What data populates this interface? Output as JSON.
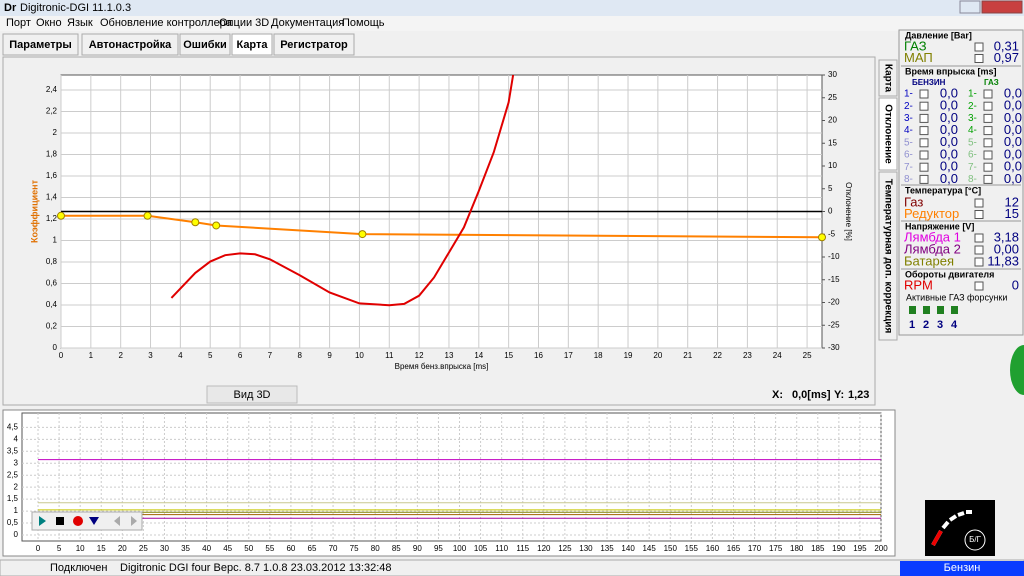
{
  "window": {
    "title": "Digitronic-DGI  11.1.0.3"
  },
  "menu": [
    "Порт",
    "Окно",
    "Язык",
    "Обновление контроллера",
    "Опции 3D",
    "Документация",
    "Помощь"
  ],
  "tabs": [
    "Параметры",
    "Автонастройка",
    "Ошибки",
    "Карта",
    "Регистратор"
  ],
  "side_tabs": [
    "Карта",
    "Отклонение",
    "Температурная доп. коррекция"
  ],
  "chart_data": [
    {
      "type": "line",
      "x_label": "Время бенз.впрыска [ms]",
      "y_label": "Коэффициент",
      "y2_label": "Отклонение [%]",
      "xlim": [
        0,
        25.5
      ],
      "xticks": [
        0,
        1,
        2,
        3,
        4,
        5,
        6,
        7,
        8,
        9,
        10,
        11,
        12,
        13,
        14,
        15,
        16,
        17,
        18,
        19,
        20,
        21,
        22,
        23,
        24,
        25
      ],
      "ylim": [
        0,
        2.54
      ],
      "yticks": [
        0,
        {
          "value": 0.2,
          "label": "0,2"
        },
        {
          "value": 0.4,
          "label": "0,4"
        },
        {
          "value": 0.6,
          "label": "0,6"
        },
        {
          "value": 0.8,
          "label": "0,8"
        },
        1,
        {
          "value": 1.2,
          "label": "1,2"
        },
        {
          "value": 1.4,
          "label": "1,4"
        },
        {
          "value": 1.6,
          "label": "1,6"
        },
        {
          "value": 1.8,
          "label": "1,8"
        },
        2,
        {
          "value": 2.2,
          "label": "2,2"
        },
        {
          "value": 2.4,
          "label": "2,4"
        }
      ],
      "y2lim": [
        -30,
        30
      ],
      "y2ticks": [
        -30,
        -25,
        -20,
        -15,
        -10,
        -5,
        0,
        5,
        10,
        15,
        20,
        25,
        30
      ],
      "grid": true,
      "hline_y2": 0,
      "series": [
        {
          "color": "#ff8000",
          "marker_color": "#ffff00",
          "x": [
            0,
            2.9,
            4.5,
            5.2,
            10.1,
            25.5
          ],
          "values": [
            1.23,
            1.23,
            1.17,
            1.14,
            1.06,
            1.03
          ]
        },
        {
          "color": "#e00000",
          "axis": "y2",
          "x": [
            3.7,
            4.5,
            5,
            5.5,
            6,
            6.5,
            7,
            8,
            9,
            10,
            11,
            11.5,
            12,
            12.5,
            13,
            13.5,
            14,
            14.5,
            15,
            15.15
          ],
          "values": [
            -19,
            -13.5,
            -11,
            -9.6,
            -9.2,
            -9.4,
            -10.5,
            -14,
            -17.8,
            -20.2,
            -20.6,
            -20.3,
            -18.5,
            -14.5,
            -9,
            -3.5,
            4.5,
            13,
            24,
            30
          ]
        }
      ]
    },
    {
      "type": "line",
      "xlim": [
        -3.8,
        200
      ],
      "xticks": [
        0,
        5,
        10,
        15,
        20,
        25,
        30,
        35,
        40,
        45,
        50,
        55,
        60,
        65,
        70,
        75,
        80,
        85,
        90,
        95,
        100,
        105,
        110,
        115,
        120,
        125,
        130,
        135,
        140,
        145,
        150,
        155,
        160,
        165,
        170,
        175,
        180,
        185,
        190,
        195,
        200
      ],
      "ylim": [
        -0.25,
        5.1
      ],
      "yticks": [
        0,
        {
          "value": 0.5,
          "label": "0,5"
        },
        1,
        {
          "value": 1.5,
          "label": "1,5"
        },
        2,
        {
          "value": 2.5,
          "label": "2,5"
        },
        3,
        {
          "value": 3.5,
          "label": "3,5"
        },
        4,
        {
          "value": 4.5,
          "label": "4,5"
        }
      ],
      "grid": true,
      "x": [
        0,
        200
      ],
      "series": [
        {
          "color": "#c000c0",
          "values": [
            3.15,
            3.15
          ]
        },
        {
          "color": "#c8c890",
          "values": [
            1.35,
            1.35
          ]
        },
        {
          "color": "#c8c800",
          "values": [
            1.05,
            1.05
          ]
        },
        {
          "color": "#808000",
          "values": [
            0.95,
            0.95
          ]
        },
        {
          "color": "#a06000",
          "values": [
            0.85,
            0.85
          ]
        },
        {
          "color": "#a000a0",
          "values": [
            0.7,
            0.7
          ]
        }
      ]
    }
  ],
  "view3d": "Вид 3D",
  "cursor": {
    "x_label": "X:",
    "x_value": "0,0[ms]",
    "y_label": "Y:",
    "y_value": "1,23"
  },
  "panel": {
    "pressure": {
      "title": "Давление [Bar]",
      "rows": [
        [
          "ГАЗ",
          "0,31"
        ],
        [
          "МАП",
          "0,97"
        ]
      ]
    },
    "injection": {
      "title": "Время впрыска [ms]",
      "col1": "БЕНЗИН",
      "col2": "ГАЗ",
      "petrol": [
        [
          "1-",
          "0,0"
        ],
        [
          "2-",
          "0,0"
        ],
        [
          "3-",
          "0,0"
        ],
        [
          "4-",
          "0,0"
        ],
        [
          "5-",
          "0,0"
        ],
        [
          "6-",
          "0,0"
        ],
        [
          "7-",
          "0,0"
        ],
        [
          "8-",
          "0,0"
        ]
      ],
      "gas": [
        [
          "1-",
          "0,0"
        ],
        [
          "2-",
          "0,0"
        ],
        [
          "3-",
          "0,0"
        ],
        [
          "4-",
          "0,0"
        ],
        [
          "5-",
          "0,0"
        ],
        [
          "6-",
          "0,0"
        ],
        [
          "7-",
          "0,0"
        ],
        [
          "8-",
          "0,0"
        ]
      ]
    },
    "temperature": {
      "title": "Температура  [°C]",
      "rows": [
        [
          "Газ",
          "12"
        ],
        [
          "Редуктор",
          "15"
        ]
      ]
    },
    "voltage": {
      "title": "Напряжение [V]",
      "rows": [
        [
          "Лямбда 1",
          "3,18"
        ],
        [
          "Лямбда 2",
          "0,00"
        ],
        [
          "Батарея",
          "11,83"
        ]
      ]
    },
    "rpm": {
      "title": "Обороты двигателя",
      "rows": [
        [
          "RPM",
          "0"
        ]
      ]
    },
    "injectors": {
      "title": "Активные ГАЗ форсунки",
      "items": [
        "1",
        "2",
        "3",
        "4"
      ]
    },
    "logo": "Б/Г"
  },
  "status": {
    "state": "Подключен",
    "info": "Digitronic DGI four  Верс. 8.7  1.0.8   23.03.2012 13:32:48",
    "fuel": "Бензин"
  }
}
